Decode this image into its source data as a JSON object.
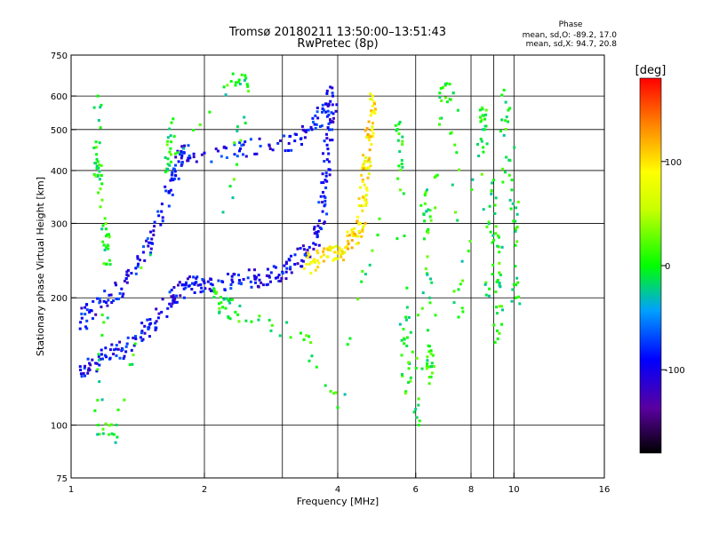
{
  "chart_data": {
    "type": "scatter",
    "title": "Tromsø 20180211 13:50:00–13:51:43",
    "subtitle": "RwPretec (8p)",
    "xlabel": "Frequency [MHz]",
    "ylabel": "Stationary phase Virtual Height [km]",
    "x_scale": "log",
    "y_scale": "log",
    "xlim": [
      1,
      16
    ],
    "ylim": [
      75,
      750
    ],
    "x_ticks": [
      1,
      2,
      4,
      6,
      8,
      10,
      16
    ],
    "x_tick_labels": [
      "1",
      "2",
      "4",
      "6",
      "8",
      "10",
      "16"
    ],
    "x_grid": [
      2,
      3,
      4,
      6,
      8,
      9,
      10
    ],
    "y_ticks": [
      75,
      100,
      200,
      300,
      400,
      500,
      600,
      750
    ],
    "y_tick_labels": [
      "75",
      "100",
      "200",
      "300",
      "400",
      "500",
      "600",
      "750"
    ],
    "y_grid": [
      100,
      200,
      300,
      400,
      500,
      600
    ],
    "grid": true,
    "stats": {
      "heading": "Phase",
      "line_o": "mean, sd,O: -89.2, 17.0",
      "line_x": "mean, sd,X: 94.7, 20.8"
    },
    "colorbar": {
      "label": "[deg]",
      "range": [
        -180,
        180
      ],
      "ticks": [
        -100,
        0,
        100
      ],
      "tick_labels": [
        "-100",
        "0",
        "100"
      ]
    },
    "series": [
      {
        "role": "o-mode F-region trace",
        "phase_deg": -95,
        "points": [
          [
            1.05,
            135
          ],
          [
            1.1,
            140
          ],
          [
            1.2,
            145
          ],
          [
            1.3,
            150
          ],
          [
            1.4,
            160
          ],
          [
            1.5,
            170
          ],
          [
            1.6,
            185
          ],
          [
            1.7,
            200
          ],
          [
            1.8,
            210
          ],
          [
            1.9,
            215
          ],
          [
            2.0,
            217
          ],
          [
            2.2,
            218
          ],
          [
            2.4,
            220
          ],
          [
            2.6,
            222
          ],
          [
            2.8,
            225
          ],
          [
            3.0,
            230
          ],
          [
            3.2,
            240
          ],
          [
            3.4,
            255
          ],
          [
            3.6,
            280
          ],
          [
            3.7,
            320
          ],
          [
            3.75,
            380
          ],
          [
            3.8,
            450
          ],
          [
            3.85,
            520
          ],
          [
            3.9,
            600
          ]
        ]
      },
      {
        "role": "o-mode E/F1 region trace",
        "phase_deg": -90,
        "points": [
          [
            1.05,
            175
          ],
          [
            1.1,
            185
          ],
          [
            1.2,
            195
          ],
          [
            1.3,
            210
          ],
          [
            1.4,
            235
          ],
          [
            1.5,
            270
          ],
          [
            1.6,
            320
          ],
          [
            1.7,
            380
          ],
          [
            1.75,
            420
          ],
          [
            1.8,
            440
          ],
          [
            2.0,
            440
          ],
          [
            2.4,
            445
          ],
          [
            2.8,
            460
          ],
          [
            3.2,
            470
          ],
          [
            3.5,
            500
          ],
          [
            3.7,
            560
          ],
          [
            3.85,
            630
          ]
        ]
      },
      {
        "role": "x-mode F-region trace",
        "phase_deg": 95,
        "points": [
          [
            3.4,
            240
          ],
          [
            3.6,
            245
          ],
          [
            3.8,
            250
          ],
          [
            4.0,
            255
          ],
          [
            4.2,
            265
          ],
          [
            4.4,
            280
          ],
          [
            4.5,
            300
          ],
          [
            4.55,
            330
          ],
          [
            4.6,
            370
          ],
          [
            4.65,
            420
          ],
          [
            4.7,
            480
          ],
          [
            4.75,
            540
          ],
          [
            4.8,
            600
          ]
        ]
      },
      {
        "role": "scattered echoes",
        "phase_deg": 0,
        "points": [
          [
            1.15,
            600
          ],
          [
            1.15,
            420
          ],
          [
            1.15,
            390
          ],
          [
            1.2,
            280
          ],
          [
            1.2,
            240
          ],
          [
            1.15,
            100
          ],
          [
            1.25,
            95
          ],
          [
            1.7,
            530
          ],
          [
            1.65,
            400
          ],
          [
            2.3,
            650
          ],
          [
            2.5,
            640
          ],
          [
            2.1,
            210
          ],
          [
            2.2,
            190
          ],
          [
            2.35,
            185
          ],
          [
            3.3,
            165
          ],
          [
            4.0,
            110
          ],
          [
            5.5,
            515
          ],
          [
            5.5,
            410
          ],
          [
            5.7,
            120
          ],
          [
            5.7,
            180
          ],
          [
            6.1,
            100
          ],
          [
            6.3,
            350
          ],
          [
            6.4,
            290
          ],
          [
            6.5,
            130
          ],
          [
            6.5,
            150
          ],
          [
            6.8,
            610
          ],
          [
            7.3,
            610
          ],
          [
            7.5,
            180
          ],
          [
            8.5,
            540
          ],
          [
            8.6,
            500
          ],
          [
            8.8,
            210
          ],
          [
            9.0,
            380
          ],
          [
            9.2,
            220
          ],
          [
            9.2,
            160
          ],
          [
            9.5,
            620
          ],
          [
            9.9,
            380
          ],
          [
            10.1,
            290
          ],
          [
            10.1,
            200
          ]
        ]
      }
    ]
  }
}
